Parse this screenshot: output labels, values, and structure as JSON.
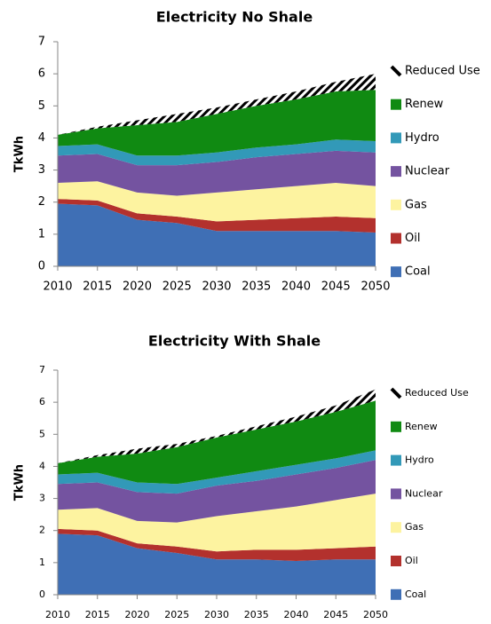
{
  "chart_data": [
    {
      "type": "stacked_area",
      "title": "Electricity No Shale",
      "y_label": "TkWh",
      "x": [
        2010,
        2015,
        2020,
        2025,
        2030,
        2035,
        2040,
        2045,
        2050
      ],
      "xlim": [
        2010,
        2050
      ],
      "ylim": [
        0,
        7
      ],
      "yticks": [
        0,
        1,
        2,
        3,
        4,
        5,
        6,
        7
      ],
      "legend": "right",
      "series": [
        {
          "name": "Coal",
          "color": "#3f6fb5",
          "values": [
            1.95,
            1.9,
            1.45,
            1.35,
            1.1,
            1.1,
            1.1,
            1.1,
            1.05
          ]
        },
        {
          "name": "Oil",
          "color": "#b3312d",
          "values": [
            0.15,
            0.15,
            0.2,
            0.2,
            0.3,
            0.35,
            0.4,
            0.45,
            0.45
          ]
        },
        {
          "name": "Gas",
          "color": "#fdf3a0",
          "values": [
            0.5,
            0.6,
            0.65,
            0.65,
            0.9,
            0.95,
            1.0,
            1.05,
            1.0
          ]
        },
        {
          "name": "Nuclear",
          "color": "#7453a0",
          "values": [
            0.85,
            0.85,
            0.85,
            0.95,
            0.95,
            1.0,
            1.0,
            1.0,
            1.05
          ]
        },
        {
          "name": "Hydro",
          "color": "#3299b8",
          "values": [
            0.3,
            0.3,
            0.3,
            0.3,
            0.3,
            0.3,
            0.3,
            0.35,
            0.35
          ]
        },
        {
          "name": "Renew",
          "color": "#108a12",
          "values": [
            0.35,
            0.5,
            0.95,
            1.05,
            1.2,
            1.3,
            1.4,
            1.5,
            1.6
          ]
        },
        {
          "name": "Reduced Use",
          "color": "#000000",
          "hatch": true,
          "values": [
            0,
            0.05,
            0.15,
            0.25,
            0.2,
            0.2,
            0.25,
            0.3,
            0.5
          ]
        }
      ]
    },
    {
      "type": "stacked_area",
      "title": "Electricity With Shale",
      "y_label": "TkWh",
      "x": [
        2010,
        2015,
        2020,
        2025,
        2030,
        2035,
        2040,
        2045,
        2050
      ],
      "xlim": [
        2010,
        2050
      ],
      "ylim": [
        0,
        7
      ],
      "yticks": [
        0,
        1,
        2,
        3,
        4,
        5,
        6,
        7
      ],
      "legend": "right",
      "series": [
        {
          "name": "Coal",
          "color": "#3f6fb5",
          "values": [
            1.9,
            1.85,
            1.45,
            1.3,
            1.1,
            1.1,
            1.05,
            1.1,
            1.1
          ]
        },
        {
          "name": "Oil",
          "color": "#b3312d",
          "values": [
            0.15,
            0.15,
            0.15,
            0.2,
            0.25,
            0.3,
            0.35,
            0.35,
            0.4
          ]
        },
        {
          "name": "Gas",
          "color": "#fdf3a0",
          "values": [
            0.6,
            0.7,
            0.7,
            0.75,
            1.1,
            1.2,
            1.35,
            1.5,
            1.65
          ]
        },
        {
          "name": "Nuclear",
          "color": "#7453a0",
          "values": [
            0.8,
            0.8,
            0.9,
            0.9,
            0.95,
            0.95,
            1.0,
            1.0,
            1.05
          ]
        },
        {
          "name": "Hydro",
          "color": "#3299b8",
          "values": [
            0.3,
            0.3,
            0.3,
            0.3,
            0.25,
            0.3,
            0.3,
            0.3,
            0.3
          ]
        },
        {
          "name": "Renew",
          "color": "#108a12",
          "values": [
            0.35,
            0.5,
            0.9,
            1.15,
            1.25,
            1.3,
            1.35,
            1.45,
            1.55
          ]
        },
        {
          "name": "Reduced Use",
          "color": "#000000",
          "hatch": true,
          "values": [
            0,
            0.05,
            0.15,
            0.1,
            0.05,
            0.1,
            0.15,
            0.2,
            0.35
          ]
        }
      ]
    }
  ]
}
